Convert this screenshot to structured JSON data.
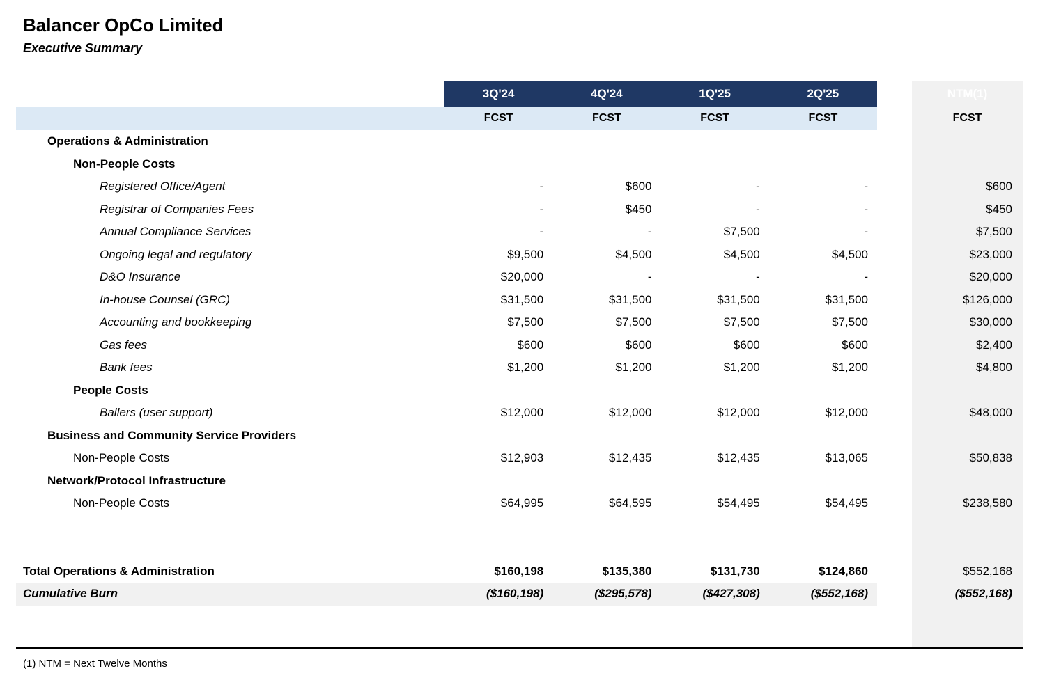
{
  "page": {
    "title": "Balancer OpCo Limited",
    "subtitle": "Executive Summary",
    "footnote": "(1) NTM = Next Twelve Months"
  },
  "colors": {
    "header_bg": "#1f3864",
    "header_text": "#ffffff",
    "subheader_bg": "#dce9f5",
    "ntm_column_bg": "#f1f1f1",
    "cumulative_row_bg": "#f1f1f1"
  },
  "table": {
    "quarter_headers": [
      "3Q'24",
      "4Q'24",
      "1Q'25",
      "2Q'25"
    ],
    "ntm_header": "NTM(1)",
    "subheader_label": "FCST",
    "rows": [
      {
        "style": "h1",
        "label": "Operations & Administration"
      },
      {
        "style": "h2",
        "label": "Non-People Costs"
      },
      {
        "style": "item",
        "label": "Registered Office/Agent",
        "values": [
          "-",
          "$600",
          "-",
          "-"
        ],
        "ntm": "$600"
      },
      {
        "style": "item",
        "label": "Registrar of Companies Fees",
        "values": [
          "-",
          "$450",
          "-",
          "-"
        ],
        "ntm": "$450"
      },
      {
        "style": "item",
        "label": "Annual Compliance Services",
        "values": [
          "-",
          "-",
          "$7,500",
          "-"
        ],
        "ntm": "$7,500"
      },
      {
        "style": "item",
        "label": "Ongoing legal and regulatory",
        "values": [
          "$9,500",
          "$4,500",
          "$4,500",
          "$4,500"
        ],
        "ntm": "$23,000"
      },
      {
        "style": "item",
        "label": "D&O Insurance",
        "values": [
          "$20,000",
          "-",
          "-",
          "-"
        ],
        "ntm": "$20,000"
      },
      {
        "style": "item",
        "label": "In-house Counsel (GRC)",
        "values": [
          "$31,500",
          "$31,500",
          "$31,500",
          "$31,500"
        ],
        "ntm": "$126,000"
      },
      {
        "style": "item",
        "label": "Accounting and bookkeeping",
        "values": [
          "$7,500",
          "$7,500",
          "$7,500",
          "$7,500"
        ],
        "ntm": "$30,000"
      },
      {
        "style": "item",
        "label": "Gas fees",
        "values": [
          "$600",
          "$600",
          "$600",
          "$600"
        ],
        "ntm": "$2,400"
      },
      {
        "style": "item",
        "label": "Bank fees",
        "values": [
          "$1,200",
          "$1,200",
          "$1,200",
          "$1,200"
        ],
        "ntm": "$4,800"
      },
      {
        "style": "h2",
        "label": "People Costs"
      },
      {
        "style": "item",
        "label": "Ballers (user support)",
        "values": [
          "$12,000",
          "$12,000",
          "$12,000",
          "$12,000"
        ],
        "ntm": "$48,000"
      },
      {
        "style": "h1",
        "label": "Business and Community Service Providers"
      },
      {
        "style": "plain2",
        "label": "Non-People Costs",
        "values": [
          "$12,903",
          "$12,435",
          "$12,435",
          "$13,065"
        ],
        "ntm": "$50,838"
      },
      {
        "style": "h1",
        "label": "Network/Protocol Infrastructure"
      },
      {
        "style": "plain2",
        "label": "Non-People Costs",
        "values": [
          "$64,995",
          "$64,595",
          "$54,495",
          "$54,495"
        ],
        "ntm": "$238,580"
      },
      {
        "style": "blank"
      },
      {
        "style": "blank"
      },
      {
        "style": "total",
        "label": "Total Operations & Administration",
        "values": [
          "$160,198",
          "$135,380",
          "$131,730",
          "$124,860"
        ],
        "ntm": "$552,168"
      },
      {
        "style": "cumulative",
        "label": "Cumulative Burn",
        "values": [
          "($160,198)",
          "($295,578)",
          "($427,308)",
          "($552,168)"
        ],
        "ntm": "($552,168)"
      }
    ]
  }
}
